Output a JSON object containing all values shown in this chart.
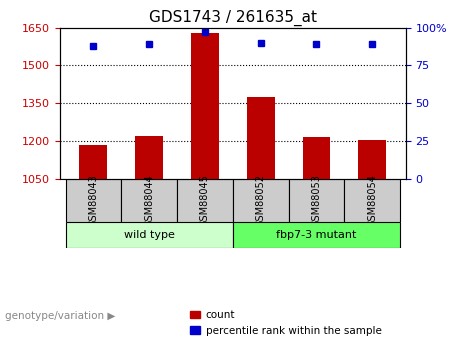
{
  "title": "GDS1743 / 261635_at",
  "categories": [
    "GSM88043",
    "GSM88044",
    "GSM88045",
    "GSM88052",
    "GSM88053",
    "GSM88054"
  ],
  "bar_values": [
    1185,
    1220,
    1630,
    1375,
    1215,
    1205
  ],
  "percentile_values": [
    88,
    89,
    97,
    90,
    89,
    89
  ],
  "ylim_left": [
    1050,
    1650
  ],
  "ylim_right": [
    0,
    100
  ],
  "yticks_left": [
    1050,
    1200,
    1350,
    1500,
    1650
  ],
  "yticks_right": [
    0,
    25,
    50,
    75,
    100
  ],
  "bar_color": "#bb0000",
  "dot_color": "#0000cc",
  "grid_color": "#000000",
  "bg_color": "#ffffff",
  "tick_area_color": "#cccccc",
  "wildtype_color": "#ccffcc",
  "mutant_color": "#66ff66",
  "wildtype_label": "wild type",
  "mutant_label": "fbp7-3 mutant",
  "wildtype_indices": [
    0,
    1,
    2
  ],
  "mutant_indices": [
    3,
    4,
    5
  ],
  "legend_count_label": "count",
  "legend_pct_label": "percentile rank within the sample",
  "genotype_label": "genotype/variation",
  "left_tick_color": "#cc0000",
  "right_tick_color": "#0000cc"
}
